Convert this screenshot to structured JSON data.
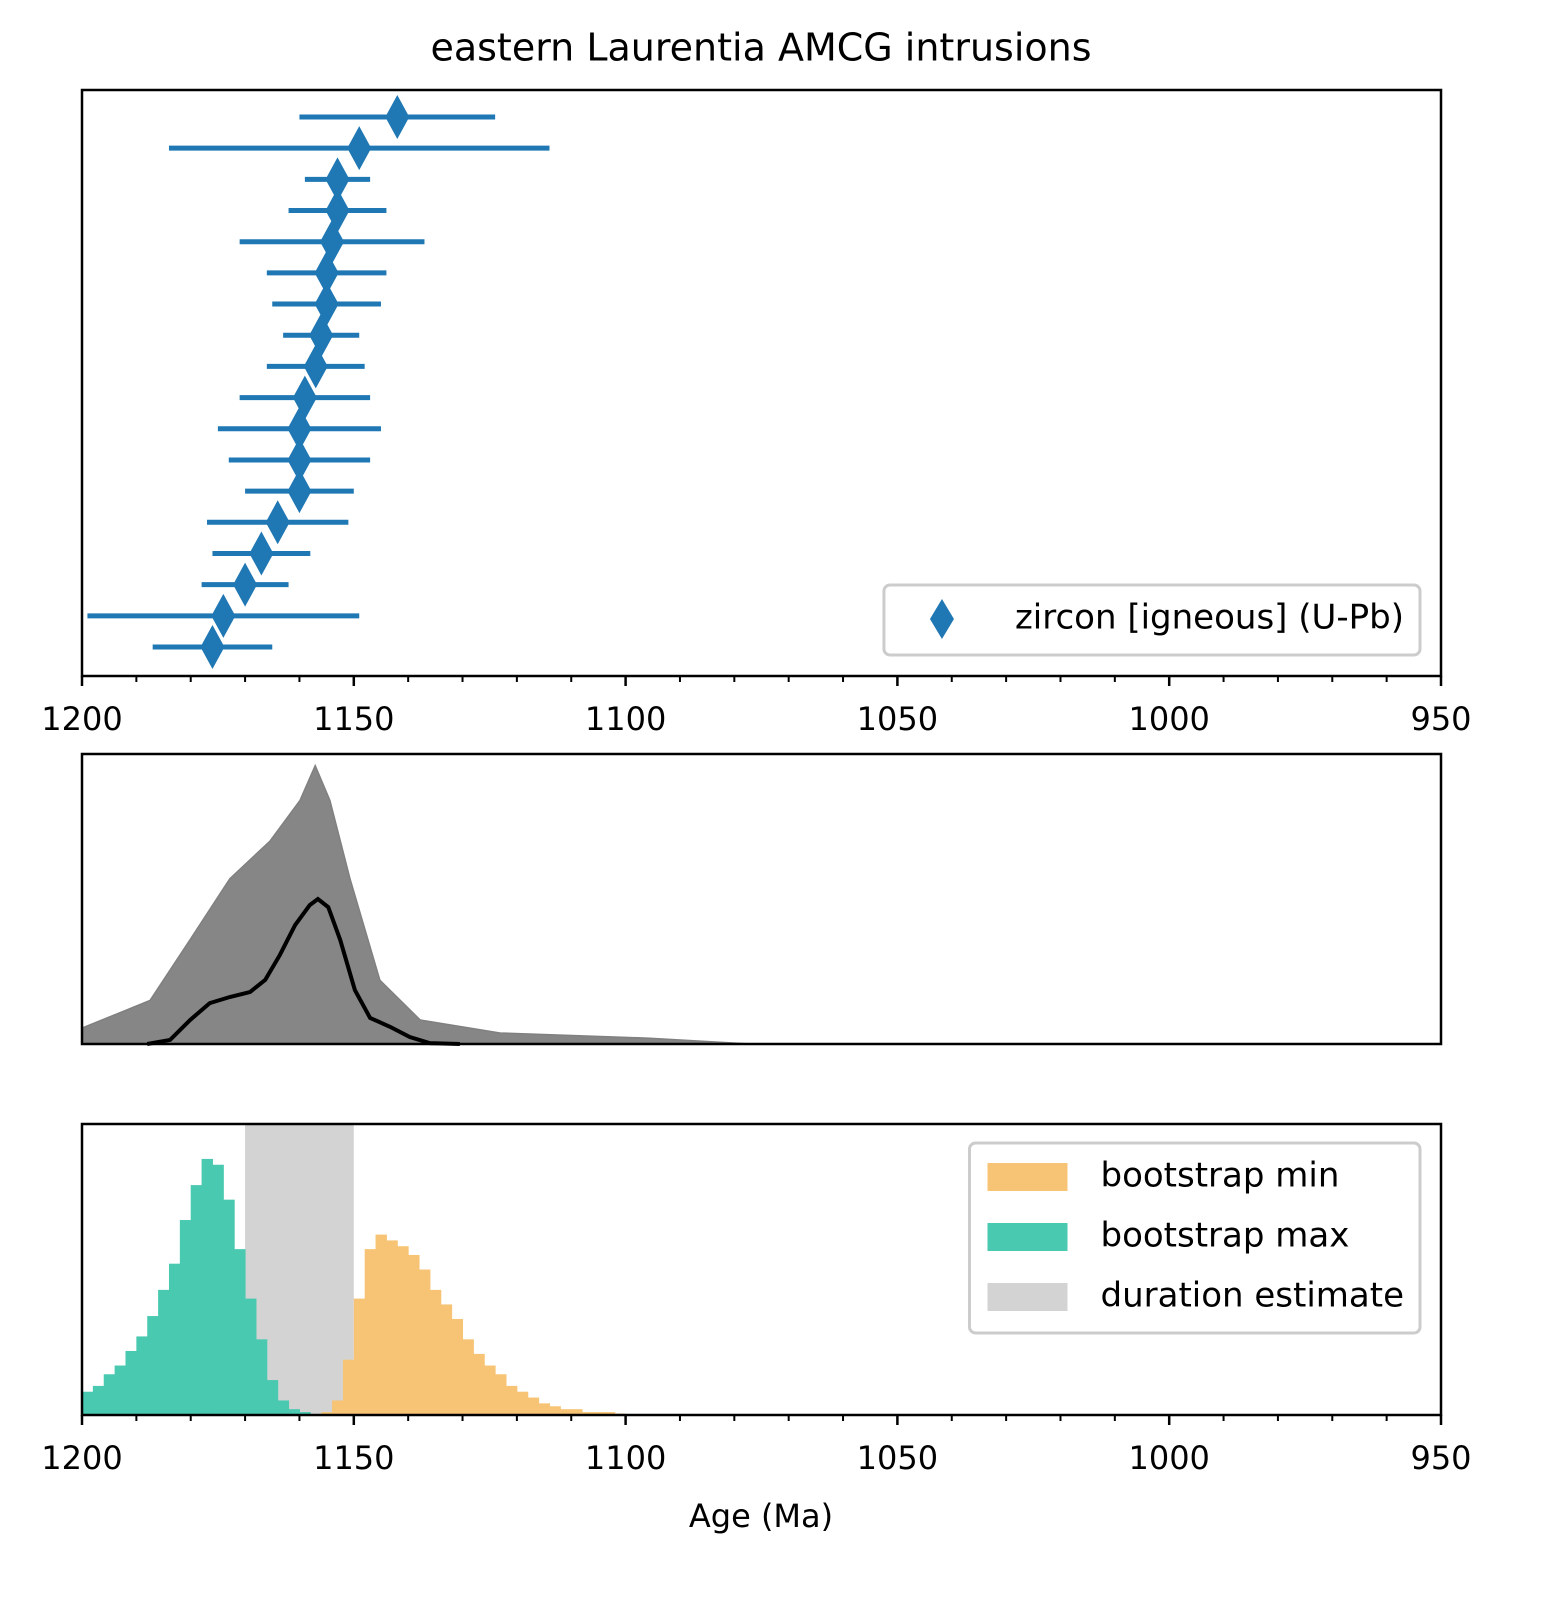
{
  "chart_data": [
    {
      "type": "errorbar",
      "title": "eastern Laurentia AMCG intrusions",
      "xlim": [
        1200,
        950
      ],
      "xticks": [
        1200,
        1150,
        1100,
        1050,
        1000,
        950
      ],
      "xminorticks": [
        1190,
        1180,
        1170,
        1160,
        1140,
        1130,
        1120,
        1110,
        1090,
        1080,
        1070,
        1060,
        1040,
        1030,
        1020,
        1010,
        990,
        980,
        970,
        960
      ],
      "legend": "lower right",
      "series": [
        {
          "name": "zircon [igneous] (U-Pb)",
          "color": "#1f77b4",
          "marker": "diamond",
          "values": [
            1142,
            1149,
            1153,
            1153,
            1154,
            1155,
            1155,
            1156,
            1157,
            1159,
            1160,
            1160,
            1160,
            1164,
            1167,
            1170,
            1174,
            1176
          ],
          "errors": [
            18,
            35,
            6,
            9,
            17,
            11,
            10,
            7,
            9,
            12,
            15,
            13,
            10,
            13,
            9,
            8,
            25,
            11
          ]
        }
      ]
    },
    {
      "type": "line",
      "xlim": [
        1200,
        950
      ],
      "ylim": [
        0,
        1
      ],
      "series": [
        {
          "color": "#808080",
          "fill": true,
          "x": [
            1200,
            1187.5,
            1180.1,
            1172.8,
            1165.4,
            1159.9,
            1157.1,
            1154.4,
            1150.7,
            1145.2,
            1137.8,
            1123.1,
            1095.5,
            1077
          ],
          "values": [
            0.055,
            0.15,
            0.36,
            0.57,
            0.7,
            0.84,
            0.96,
            0.84,
            0.57,
            0.22,
            0.083,
            0.038,
            0.02,
            0
          ]
        },
        {
          "color": "#000000",
          "fill": false,
          "x": [
            1188,
            1183.8,
            1180.1,
            1176.5,
            1172.8,
            1169.1,
            1166.3,
            1163.6,
            1160.8,
            1158.1,
            1156.6,
            1154.7,
            1152.5,
            1149.8,
            1147,
            1143.3,
            1139.7,
            1136,
            1130.5
          ],
          "values": [
            0,
            0.014,
            0.083,
            0.141,
            0.162,
            0.179,
            0.221,
            0.307,
            0.41,
            0.479,
            0.5,
            0.472,
            0.359,
            0.186,
            0.09,
            0.059,
            0.024,
            0.003,
            0
          ]
        }
      ]
    },
    {
      "type": "histogram",
      "xlabel": "Age (Ma)",
      "xlim": [
        1200,
        950
      ],
      "ylim": [
        0,
        100
      ],
      "xticks": [
        1200,
        1150,
        1100,
        1050,
        1000,
        950
      ],
      "xminorticks": [
        1190,
        1180,
        1170,
        1160,
        1140,
        1130,
        1120,
        1110,
        1090,
        1080,
        1070,
        1060,
        1040,
        1030,
        1020,
        1010,
        990,
        980,
        970,
        960
      ],
      "legend": "upper right",
      "series": [
        {
          "name": "bootstrap min",
          "color": "#f7c475",
          "bins": [
            1156,
            1154,
            1152,
            1150,
            1148,
            1146,
            1144,
            1142,
            1140,
            1138,
            1136,
            1134,
            1132,
            1130,
            1128,
            1126,
            1124,
            1122,
            1120,
            1118,
            1116,
            1114,
            1112,
            1110,
            1108,
            1106,
            1104,
            1102,
            1100
          ],
          "values": [
            1,
            5,
            19,
            40,
            57,
            62,
            60,
            58,
            55,
            50,
            43,
            38,
            33,
            26,
            21,
            17,
            14,
            10,
            8,
            6,
            4,
            3,
            2,
            2,
            1,
            1,
            1,
            0.5
          ]
        },
        {
          "name": "bootstrap max",
          "color": "#48c9b0",
          "bins": [
            1200,
            1198,
            1196,
            1194,
            1192,
            1190,
            1188,
            1186,
            1184,
            1182,
            1180,
            1178,
            1176,
            1174,
            1172,
            1170,
            1168,
            1166,
            1164,
            1162,
            1160,
            1158
          ],
          "values": [
            8,
            10,
            14,
            17,
            22,
            27,
            34,
            43,
            52,
            67,
            79,
            88,
            86,
            74,
            57,
            40,
            26,
            12,
            5,
            2,
            1
          ]
        }
      ],
      "spans": [
        {
          "name": "duration estimate",
          "color": "#d3d3d3",
          "range": [
            1170,
            1150
          ]
        }
      ]
    }
  ]
}
